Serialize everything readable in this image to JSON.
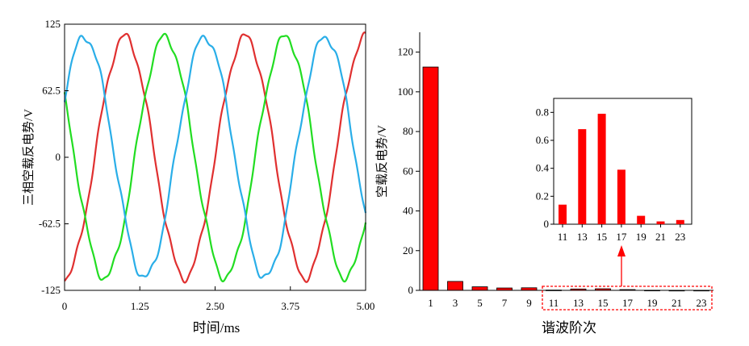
{
  "chart_data": [
    {
      "type": "line",
      "xlabel": "时间/ms",
      "ylabel": "三相空载反电势/V",
      "xlim": [
        0,
        5.0
      ],
      "ylim": [
        -125,
        125
      ],
      "x_ticks": [
        "0",
        "1.25",
        "2.50",
        "3.75",
        "5.00"
      ],
      "y_ticks": [
        "125",
        "62.5",
        "0",
        "-62.5",
        "-125"
      ],
      "grid": false,
      "amplitude_V": 113,
      "period_ms": 2.0,
      "series": [
        {
          "color": "#e03030",
          "phase_deg": -90,
          "start_value": 0
        },
        {
          "color": "#22dd22",
          "phase_deg": 150,
          "start_value": -100
        },
        {
          "color": "#2aaee8",
          "phase_deg": 30,
          "start_value": 100
        }
      ]
    },
    {
      "type": "bar",
      "xlabel": "谐波阶次",
      "ylabel": "空载反电势/V",
      "ylim": [
        0,
        130
      ],
      "y_ticks": [
        "0",
        "20",
        "40",
        "60",
        "80",
        "100",
        "120"
      ],
      "categories": [
        "1",
        "3",
        "5",
        "7",
        "9",
        "11",
        "13",
        "15",
        "17",
        "19",
        "21",
        "23"
      ],
      "values": [
        112.5,
        4.5,
        1.8,
        1.2,
        1.3,
        0.14,
        0.68,
        0.79,
        0.39,
        0.06,
        0.02,
        0.03
      ],
      "bar_color": "#ff0000",
      "highlight_box": {
        "from": "11",
        "to": "23",
        "style": "dashed",
        "color": "#ff0000"
      }
    },
    {
      "type": "bar",
      "inset_of": 1,
      "ylim": [
        0,
        0.9
      ],
      "y_ticks": [
        "0",
        "0.2",
        "0.4",
        "0.6",
        "0.8"
      ],
      "categories": [
        "11",
        "13",
        "15",
        "17",
        "19",
        "21",
        "23"
      ],
      "values": [
        0.14,
        0.68,
        0.79,
        0.39,
        0.06,
        0.02,
        0.03
      ],
      "bar_color": "#ff0000"
    }
  ]
}
